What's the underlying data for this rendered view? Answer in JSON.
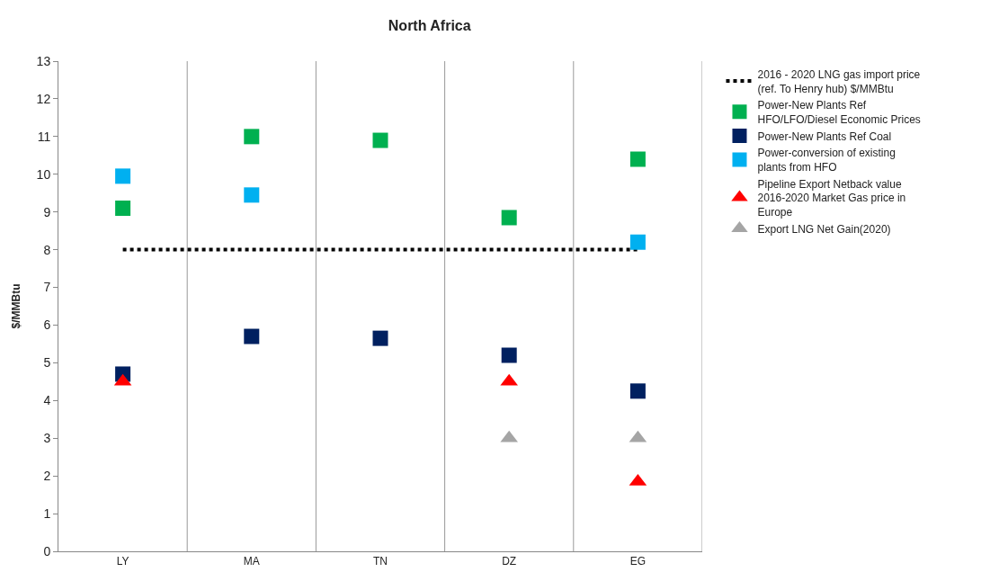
{
  "chart_data": {
    "type": "scatter",
    "title": "North Africa",
    "ylabel": "$/MMBtu",
    "categories": [
      "LY",
      "MA",
      "TN",
      "DZ",
      "EG"
    ],
    "ylim": [
      0,
      13
    ],
    "yticks": [
      0,
      1,
      2,
      3,
      4,
      5,
      6,
      7,
      8,
      9,
      10,
      11,
      12,
      13
    ],
    "grid": "x",
    "legend": "right",
    "series": [
      {
        "name": "2016 - 2020 LNG gas import price (ref. To Henry hub) $/MMBtu",
        "type": "line",
        "line_style": "dotted",
        "marker": "none",
        "color": "#000000",
        "values": [
          8,
          8,
          8,
          8,
          8
        ]
      },
      {
        "name": "Power-New Plants Ref HFO/LFO/Diesel Economic Prices",
        "marker": "square",
        "color": "#00b050",
        "values": [
          9.1,
          11.0,
          10.9,
          8.85,
          10.4
        ]
      },
      {
        "name": "Power-New Plants Ref Coal",
        "marker": "square",
        "color": "#002060",
        "values": [
          4.7,
          5.7,
          5.65,
          5.2,
          4.25
        ]
      },
      {
        "name": "Power-conversion of existing plants from HFO",
        "marker": "square",
        "color": "#00b0f0",
        "values": [
          9.95,
          9.45,
          null,
          null,
          8.2
        ]
      },
      {
        "name": "Pipeline Export Netback value 2016-2020 Market Gas price in Europe",
        "marker": "triangle",
        "color": "#ff0000",
        "values": [
          4.5,
          null,
          null,
          4.5,
          1.85
        ]
      },
      {
        "name": "Export LNG Net Gain(2020)",
        "marker": "triangle",
        "color": "#a5a5a5",
        "values": [
          null,
          null,
          null,
          3.0,
          3.0
        ]
      }
    ]
  }
}
